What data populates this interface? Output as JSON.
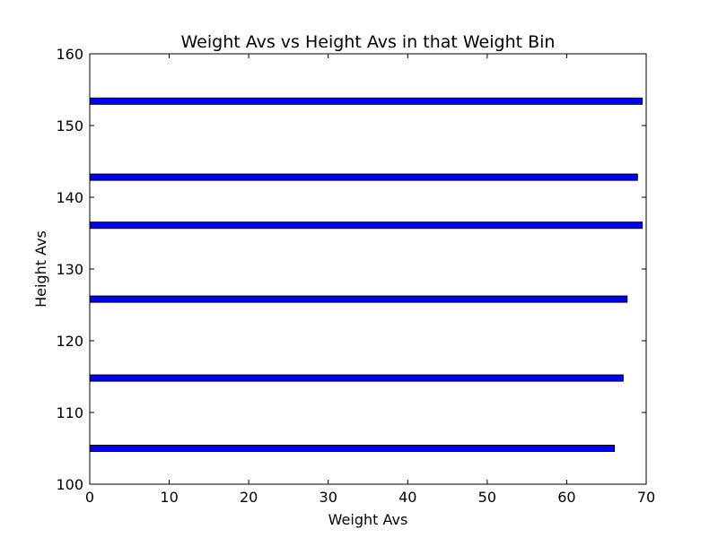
{
  "chart_data": {
    "type": "bar",
    "orientation": "horizontal",
    "title": "Weight Avs vs Height Avs in that Weight Bin",
    "xlabel": "Weight Avs",
    "ylabel": "Height Avs",
    "xlim": [
      0,
      70
    ],
    "ylim": [
      100,
      160
    ],
    "xticks": [
      0,
      10,
      20,
      30,
      40,
      50,
      60,
      70
    ],
    "yticks": [
      100,
      110,
      120,
      130,
      140,
      150,
      160
    ],
    "grid": false,
    "bar_color": "#0000ff",
    "bar_edge_color": "#000000",
    "bars": [
      {
        "y": 105.0,
        "value": 66.0
      },
      {
        "y": 114.8,
        "value": 67.1
      },
      {
        "y": 125.8,
        "value": 67.6
      },
      {
        "y": 136.1,
        "value": 69.5
      },
      {
        "y": 142.8,
        "value": 68.9
      },
      {
        "y": 153.4,
        "value": 69.5
      }
    ]
  }
}
